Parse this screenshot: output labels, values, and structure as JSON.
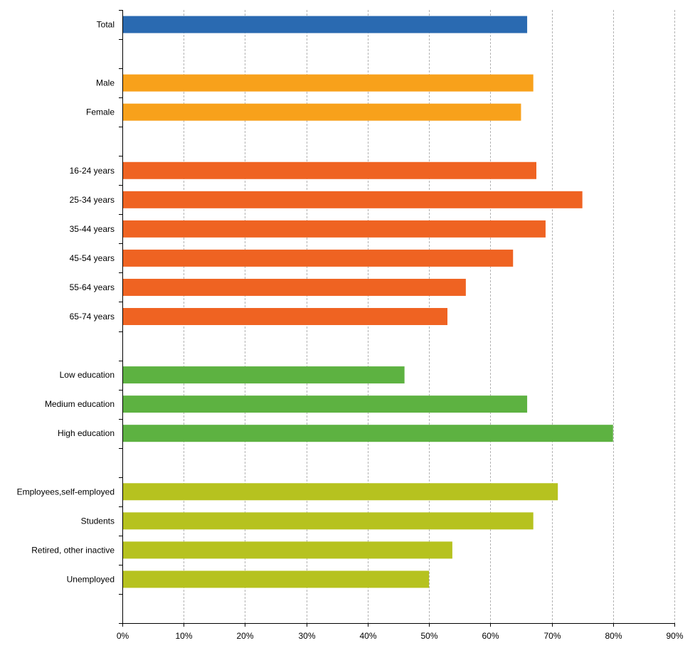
{
  "chart_data": {
    "type": "bar",
    "orientation": "horizontal",
    "categories": [
      "Total",
      "",
      "Male",
      "Female",
      "",
      "16-24 years",
      "25-34 years",
      "35-44 years",
      "45-54 years",
      "55-64 years",
      "65-74 years",
      "",
      "Low education",
      "Medium education",
      "High education",
      "",
      "Employees,self-employed",
      "Students",
      "Retired, other inactive",
      "Unemployed",
      ""
    ],
    "values": [
      66,
      null,
      67,
      65,
      null,
      67.5,
      75,
      69,
      63.7,
      56,
      53,
      null,
      46,
      66,
      80,
      null,
      71,
      67,
      53.8,
      50,
      null
    ],
    "groups": [
      0,
      null,
      1,
      1,
      null,
      2,
      2,
      2,
      2,
      2,
      2,
      null,
      3,
      3,
      3,
      null,
      4,
      4,
      4,
      4,
      null
    ],
    "group_colors": [
      "#2a6ab1",
      "#f8a11b",
      "#ef6322",
      "#5db241",
      "#b6c21f"
    ],
    "xlim": [
      0,
      90
    ],
    "x_ticks": [
      0,
      10,
      20,
      30,
      40,
      50,
      60,
      70,
      80,
      90
    ],
    "x_tick_labels": [
      "0%",
      "10%",
      "20%",
      "30%",
      "40%",
      "50%",
      "60%",
      "70%",
      "80%",
      "90%"
    ],
    "grid": "vertical dashed",
    "legend": "none",
    "title": "",
    "xlabel": "",
    "ylabel": ""
  }
}
